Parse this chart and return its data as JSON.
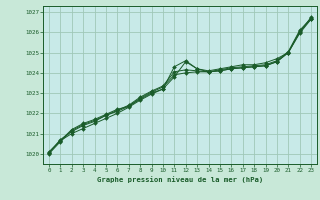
{
  "background_color": "#c8e8d8",
  "plot_bg_color": "#c8eae8",
  "grid_color": "#a0c8b8",
  "line_color": "#1a5c2a",
  "marker_color": "#1a5c2a",
  "title": "Graphe pression niveau de la mer (hPa)",
  "ylim": [
    1019.5,
    1027.3
  ],
  "yticks": [
    1020,
    1021,
    1022,
    1023,
    1024,
    1025,
    1026,
    1027
  ],
  "xticks": [
    0,
    1,
    2,
    3,
    4,
    5,
    6,
    7,
    8,
    9,
    10,
    11,
    12,
    13,
    14,
    15,
    16,
    17,
    18,
    19,
    20,
    21,
    22,
    23
  ],
  "series": [
    [
      1020.1,
      1020.65,
      1021.0,
      1021.25,
      1021.5,
      1021.75,
      1022.0,
      1022.3,
      1022.65,
      1022.95,
      1023.2,
      1024.3,
      1024.6,
      1024.2,
      1024.1,
      1024.2,
      1024.3,
      1024.4,
      1024.4,
      1024.5,
      1024.7,
      1025.0,
      1026.0,
      1026.75
    ],
    [
      1020.05,
      1020.7,
      1021.1,
      1021.4,
      1021.6,
      1021.9,
      1022.15,
      1022.4,
      1022.8,
      1023.1,
      1023.35,
      1024.05,
      1024.15,
      1024.1,
      1024.05,
      1024.15,
      1024.25,
      1024.3,
      1024.35,
      1024.4,
      1024.6,
      1025.05,
      1026.1,
      1026.7
    ],
    [
      1020.0,
      1020.6,
      1021.15,
      1021.45,
      1021.65,
      1021.9,
      1022.1,
      1022.35,
      1022.75,
      1023.05,
      1023.3,
      1023.9,
      1024.0,
      1024.05,
      1024.05,
      1024.1,
      1024.2,
      1024.25,
      1024.3,
      1024.35,
      1024.55,
      1025.0,
      1026.05,
      1026.65
    ],
    [
      1020.05,
      1020.65,
      1021.2,
      1021.5,
      1021.7,
      1021.95,
      1022.2,
      1022.35,
      1022.7,
      1023.0,
      1023.2,
      1023.8,
      1024.55,
      1024.2,
      1024.05,
      1024.1,
      1024.2,
      1024.25,
      1024.3,
      1024.35,
      1024.55,
      1025.0,
      1025.95,
      1026.65
    ]
  ]
}
